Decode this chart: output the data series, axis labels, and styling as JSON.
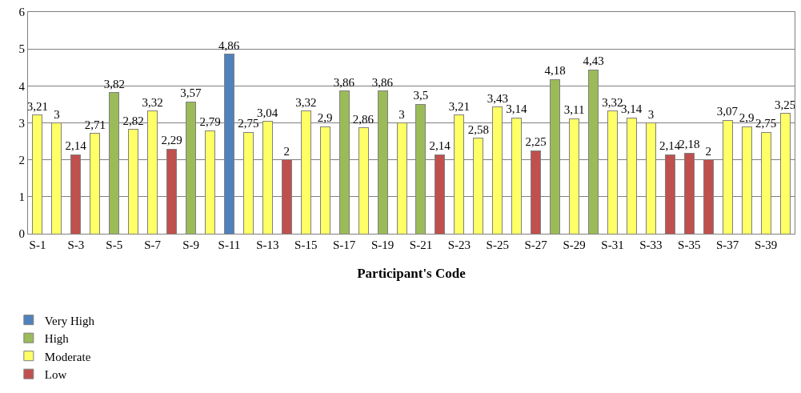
{
  "chart_data": {
    "type": "bar",
    "xlabel": "Participant's Code",
    "categories": [
      "S-1",
      null,
      "S-3",
      null,
      "S-5",
      null,
      "S-7",
      null,
      "S-9",
      null,
      "S-11",
      null,
      "S-13",
      null,
      "S-15",
      null,
      "S-17",
      null,
      "S-19",
      null,
      "S-21",
      null,
      "S-23",
      null,
      "S-25",
      null,
      "S-27",
      null,
      "S-29",
      null,
      "S-31",
      null,
      "S-33",
      null,
      "S-35",
      null,
      "S-37",
      null,
      "S-39",
      null
    ],
    "stacked": true,
    "series": [
      {
        "name": "Very High",
        "color": "#4f81bd",
        "values": [
          null,
          null,
          null,
          null,
          null,
          null,
          null,
          null,
          null,
          null,
          4.86,
          null,
          null,
          null,
          null,
          null,
          null,
          null,
          null,
          null,
          null,
          null,
          null,
          null,
          null,
          null,
          null,
          null,
          null,
          null,
          null,
          null,
          null,
          null,
          null,
          null,
          null,
          null,
          null,
          null
        ],
        "value_labels": [
          null,
          null,
          null,
          null,
          null,
          null,
          null,
          null,
          null,
          null,
          "4,86",
          null,
          null,
          null,
          null,
          null,
          null,
          null,
          null,
          null,
          null,
          null,
          null,
          null,
          null,
          null,
          null,
          null,
          null,
          null,
          null,
          null,
          null,
          null,
          null,
          null,
          null,
          null,
          null,
          null
        ]
      },
      {
        "name": "High",
        "color": "#9bbb59",
        "values": [
          null,
          null,
          null,
          null,
          3.82,
          null,
          null,
          null,
          3.57,
          null,
          null,
          null,
          null,
          null,
          null,
          null,
          3.86,
          null,
          3.86,
          null,
          3.5,
          null,
          null,
          null,
          null,
          null,
          null,
          4.18,
          null,
          4.43,
          null,
          null,
          null,
          null,
          null,
          null,
          null,
          null,
          null,
          null
        ],
        "value_labels": [
          null,
          null,
          null,
          null,
          "3,82",
          null,
          null,
          null,
          "3,57",
          null,
          null,
          null,
          null,
          null,
          null,
          null,
          "3,86",
          null,
          "3,86",
          null,
          "3,5",
          null,
          null,
          null,
          null,
          null,
          null,
          "4,18",
          null,
          "4,43",
          null,
          null,
          null,
          null,
          null,
          null,
          null,
          null,
          null,
          null
        ]
      },
      {
        "name": "Moderate",
        "color": "#ffff66",
        "values": [
          3.21,
          3,
          null,
          2.71,
          null,
          2.82,
          3.32,
          null,
          null,
          2.79,
          null,
          2.75,
          3.04,
          null,
          3.32,
          2.9,
          null,
          2.86,
          null,
          3,
          null,
          null,
          3.21,
          2.58,
          3.43,
          3.14,
          null,
          null,
          3.11,
          null,
          3.32,
          3.14,
          3,
          null,
          null,
          null,
          3.07,
          2.9,
          2.75,
          3.25
        ],
        "value_labels": [
          "3,21",
          "3",
          null,
          "2,71",
          null,
          "2,82",
          "3,32",
          null,
          null,
          "2,79",
          null,
          "2,75",
          "3,04",
          null,
          "3,32",
          "2,9",
          null,
          "2,86",
          null,
          "3",
          null,
          null,
          "3,21",
          "2,58",
          "3,43",
          "3,14",
          null,
          null,
          "3,11",
          null,
          "3,32",
          "3,14",
          "3",
          null,
          null,
          null,
          "3,07",
          "2,9",
          "2,75",
          "3,25"
        ]
      },
      {
        "name": "Low",
        "color": "#c0504d",
        "values": [
          null,
          null,
          2.14,
          null,
          null,
          null,
          null,
          2.29,
          null,
          null,
          null,
          null,
          null,
          2,
          null,
          null,
          null,
          null,
          null,
          null,
          null,
          2.14,
          null,
          null,
          null,
          null,
          2.25,
          null,
          null,
          null,
          null,
          null,
          null,
          2.14,
          2.18,
          2,
          null,
          null,
          null,
          null
        ],
        "value_labels": [
          null,
          null,
          "2,14",
          null,
          null,
          null,
          null,
          "2,29",
          null,
          null,
          null,
          null,
          null,
          "2",
          null,
          null,
          null,
          null,
          null,
          null,
          null,
          "2,14",
          null,
          null,
          null,
          null,
          "2,25",
          null,
          null,
          null,
          null,
          null,
          null,
          "2,14",
          "2,18",
          "2",
          null,
          null,
          null,
          null
        ]
      }
    ],
    "ylim": [
      0,
      6
    ],
    "yticks": [
      0,
      1,
      2,
      3,
      4,
      5,
      6
    ],
    "grid": "y",
    "legend": "bottom left"
  }
}
